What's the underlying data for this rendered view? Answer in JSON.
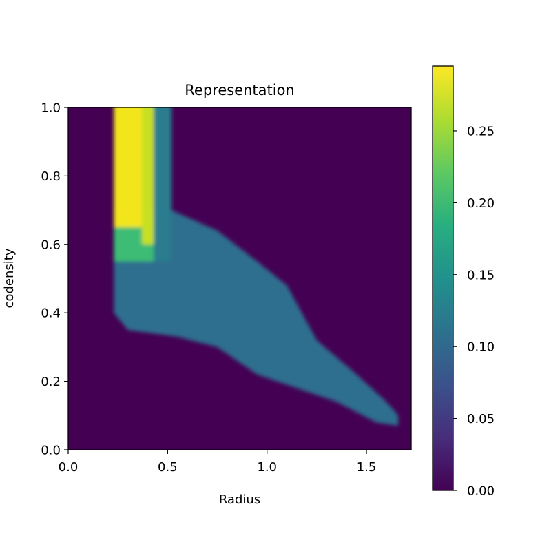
{
  "chart_data": {
    "type": "heatmap",
    "title": "Representation",
    "xlabel": "Radius",
    "ylabel": "codensity",
    "xlim": [
      0.0,
      1.725
    ],
    "ylim": [
      0.0,
      1.0
    ],
    "x_ticks": [
      "0.0",
      "0.5",
      "1.0",
      "1.5"
    ],
    "y_ticks": [
      "0.0",
      "0.2",
      "0.4",
      "0.6",
      "0.8",
      "1.0"
    ],
    "colormap": "viridis",
    "colorbar": {
      "range": [
        0.0,
        0.295
      ],
      "ticks": [
        "0.00",
        "0.05",
        "0.10",
        "0.15",
        "0.20",
        "0.25"
      ]
    },
    "background_value": 0.0,
    "regions": [
      {
        "description": "bright column",
        "x_range": [
          0.23,
          0.43
        ],
        "y_range": [
          0.6,
          1.0
        ],
        "value": 0.285
      },
      {
        "description": "transition",
        "x_range": [
          0.23,
          0.43
        ],
        "y_range": [
          0.55,
          0.7
        ],
        "value": 0.21
      },
      {
        "description": "upper-right column",
        "x_range": [
          0.43,
          0.52
        ],
        "y_range": [
          0.55,
          1.0
        ],
        "value": 0.1
      },
      {
        "description": "band",
        "value": 0.11
      }
    ],
    "band_upper_edge": [
      [
        0.23,
        0.62
      ],
      [
        0.52,
        0.7
      ],
      [
        0.75,
        0.64
      ],
      [
        0.95,
        0.55
      ],
      [
        1.1,
        0.48
      ],
      [
        1.25,
        0.32
      ],
      [
        1.45,
        0.22
      ],
      [
        1.6,
        0.14
      ],
      [
        1.66,
        0.1
      ]
    ],
    "band_lower_edge": [
      [
        0.23,
        0.4
      ],
      [
        0.3,
        0.35
      ],
      [
        0.55,
        0.33
      ],
      [
        0.75,
        0.3
      ],
      [
        0.95,
        0.22
      ],
      [
        1.15,
        0.18
      ],
      [
        1.35,
        0.14
      ],
      [
        1.55,
        0.08
      ],
      [
        1.66,
        0.07
      ]
    ]
  }
}
